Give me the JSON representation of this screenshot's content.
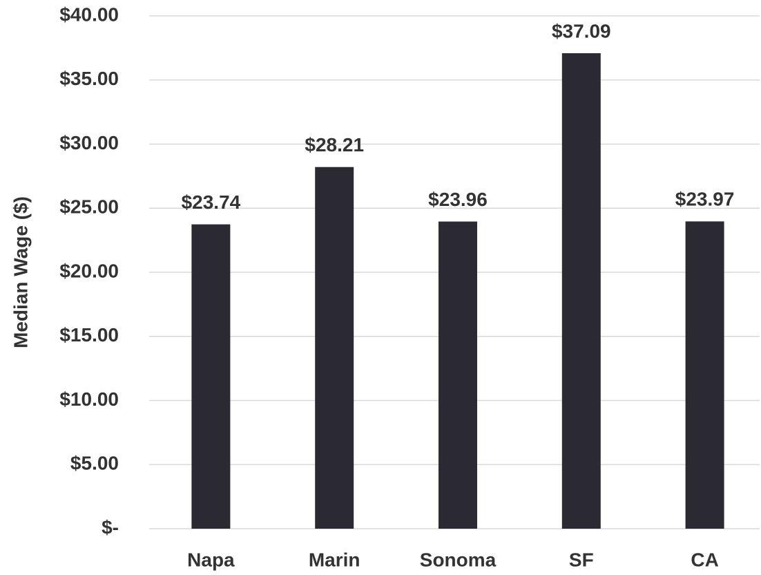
{
  "chart_data": {
    "type": "bar",
    "y_axis_label": "Median Wage ($)",
    "categories": [
      "Napa",
      "Marin",
      "Sonoma",
      "SF",
      "CA"
    ],
    "values": [
      23.74,
      28.21,
      23.96,
      37.09,
      23.97
    ],
    "value_labels": [
      "$23.74",
      "$28.21",
      "$23.96",
      "$37.09",
      "$23.97"
    ],
    "color": "#2b2a33",
    "ylim": [
      0,
      40
    ],
    "yticks": [
      {
        "value": 0,
        "label": "$-"
      },
      {
        "value": 5,
        "label": "$5.00"
      },
      {
        "value": 10,
        "label": "$10.00"
      },
      {
        "value": 15,
        "label": "$15.00"
      },
      {
        "value": 20,
        "label": "$20.00"
      },
      {
        "value": 25,
        "label": "$25.00"
      },
      {
        "value": 30,
        "label": "$30.00"
      },
      {
        "value": 35,
        "label": "$35.00"
      },
      {
        "value": 40,
        "label": "$40.00"
      }
    ],
    "grid": true
  }
}
